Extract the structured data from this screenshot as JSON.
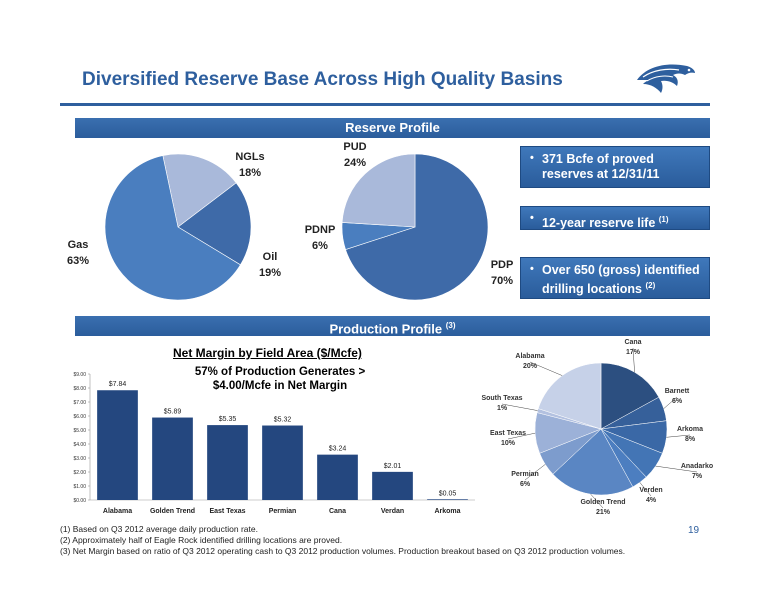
{
  "slide": {
    "title": "Diversified Reserve Base Across High Quality Basins",
    "page_number": "19",
    "logo": "eagle-logo"
  },
  "reserve_profile": {
    "header": "Reserve Profile",
    "callouts": [
      {
        "text": "371 Bcfe of proved reserves at 12/31/11",
        "sup": ""
      },
      {
        "text": "12-year reserve life",
        "sup": "(1)"
      },
      {
        "text": "Over 650 (gross) identified drilling locations",
        "sup": "(2)"
      }
    ]
  },
  "production_profile": {
    "header": "Production Profile",
    "header_sup": "(3)",
    "bar_chart_title": "Net Margin by Field Area ($/Mcfe)",
    "bar_chart_note_line1": "57% of Production Generates >",
    "bar_chart_note_line2": "$4.00/Mcfe in Net Margin"
  },
  "footnotes": [
    "(1)  Based on Q3 2012 average daily production rate.",
    "(2)  Approximately half of Eagle Rock identified drilling locations are proved.",
    "(3)  Net Margin based on ratio of Q3 2012 operating cash to Q3 2012 production volumes.  Production breakout based on Q3 2012 production volumes."
  ],
  "chart_data": [
    {
      "type": "pie",
      "categories": [
        "Gas",
        "NGLs",
        "Oil"
      ],
      "values": [
        63,
        18,
        19
      ],
      "labels": [
        [
          "Gas",
          "63%"
        ],
        [
          "NGLs",
          "18%"
        ],
        [
          "Oil",
          "19%"
        ]
      ],
      "colors": [
        "#4a7ebf",
        "#a9b9da",
        "#3e6aa8"
      ]
    },
    {
      "type": "pie",
      "categories": [
        "PDP",
        "PDNP",
        "PUD"
      ],
      "values": [
        70,
        6,
        24
      ],
      "labels": [
        [
          "PDP",
          "70%"
        ],
        [
          "PDNP",
          "6%"
        ],
        [
          "PUD",
          "24%"
        ]
      ],
      "colors": [
        "#3e6aa8",
        "#4a7ebf",
        "#a9b9da"
      ]
    },
    {
      "type": "bar",
      "title": "Net Margin by Field Area ($/Mcfe)",
      "categories": [
        "Alabama",
        "Golden Trend",
        "East Texas",
        "Permian",
        "Cana",
        "Verdan",
        "Arkoma"
      ],
      "values": [
        7.84,
        5.89,
        5.35,
        5.32,
        3.24,
        2.01,
        0.05
      ],
      "data_labels": [
        "$7.84",
        "$5.89",
        "$5.35",
        "$5.32",
        "$3.24",
        "$2.01",
        "$0.05"
      ],
      "ytick_labels": [
        "$0.00",
        "$1.00",
        "$2.00",
        "$3.00",
        "$4.00",
        "$5.00",
        "$6.00",
        "$7.00",
        "$8.00",
        "$9.00"
      ],
      "ylim": [
        0,
        9
      ],
      "color": "#24477f"
    },
    {
      "type": "pie",
      "categories": [
        "Cana",
        "Barnett",
        "Arkoma",
        "Anadarko",
        "Verden",
        "Golden Trend",
        "Permian",
        "East Texas",
        "South Texas",
        "Alabama"
      ],
      "values": [
        17,
        6,
        8,
        7,
        4,
        21,
        6,
        10,
        1,
        20
      ],
      "labels": [
        [
          "Cana",
          "17%"
        ],
        [
          "Barnett",
          "6%"
        ],
        [
          "Arkoma",
          "8%"
        ],
        [
          "Anadarko",
          "7%"
        ],
        [
          "Verden",
          "4%"
        ],
        [
          "Golden Trend",
          "21%"
        ],
        [
          "Permian",
          "6%"
        ],
        [
          "East Texas",
          "10%"
        ],
        [
          "South Texas",
          "1%"
        ],
        [
          "Alabama",
          "20%"
        ]
      ],
      "colors": [
        "#2c4f80",
        "#36609a",
        "#3a68a6",
        "#4375b5",
        "#4c7ec0",
        "#5a86c3",
        "#7d9ccd",
        "#9cb1d8",
        "#b3c1e0",
        "#c6d1e8"
      ]
    }
  ]
}
